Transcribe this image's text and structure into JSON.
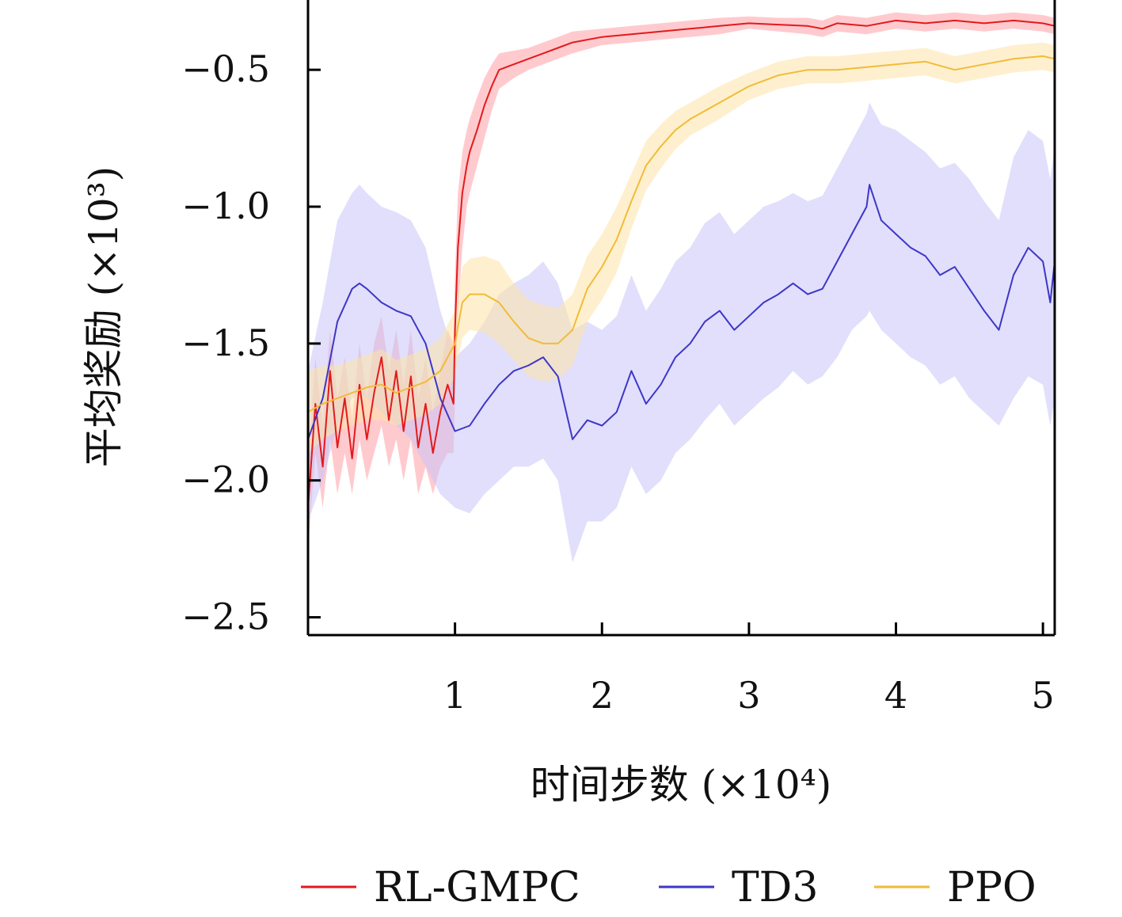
{
  "chart_data": {
    "type": "line",
    "xlabel": "时间步数 (×10⁴)",
    "ylabel": "平均奖励 (×10³)",
    "xlim": [
      0.0,
      5.08
    ],
    "ylim": [
      -2.565,
      -0.245
    ],
    "xticks": [
      1,
      2,
      3,
      4,
      5
    ],
    "yticks": [
      -0.5,
      -1.0,
      -1.5,
      -2.0,
      -2.5
    ],
    "xtick_labels": [
      "1",
      "2",
      "3",
      "4",
      "5"
    ],
    "ytick_labels": [
      "−0.5",
      "−1.0",
      "−1.5",
      "−2.0",
      "−2.5"
    ],
    "grid": false,
    "legend_position": "bottom",
    "series": [
      {
        "name": "RL-GMPC",
        "color": "#e31a1c",
        "band_color": "#ff9fa6",
        "x": [
          0.0,
          0.05,
          0.1,
          0.15,
          0.2,
          0.25,
          0.3,
          0.35,
          0.4,
          0.45,
          0.5,
          0.55,
          0.6,
          0.65,
          0.7,
          0.75,
          0.8,
          0.85,
          0.9,
          0.95,
          0.99,
          1.0,
          1.02,
          1.05,
          1.08,
          1.1,
          1.15,
          1.2,
          1.25,
          1.3,
          1.4,
          1.5,
          1.6,
          1.7,
          1.8,
          2.0,
          2.2,
          2.4,
          2.6,
          2.8,
          3.0,
          3.2,
          3.4,
          3.5,
          3.6,
          3.8,
          4.0,
          4.2,
          4.4,
          4.6,
          4.8,
          5.0,
          5.08
        ],
        "y": [
          -2.1,
          -1.72,
          -1.95,
          -1.6,
          -1.88,
          -1.7,
          -1.92,
          -1.65,
          -1.85,
          -1.68,
          -1.55,
          -1.78,
          -1.6,
          -1.82,
          -1.62,
          -1.88,
          -1.72,
          -1.9,
          -1.75,
          -1.65,
          -1.72,
          -1.45,
          -1.15,
          -0.95,
          -0.85,
          -0.8,
          -0.72,
          -0.63,
          -0.56,
          -0.5,
          -0.48,
          -0.46,
          -0.44,
          -0.42,
          -0.4,
          -0.38,
          -0.37,
          -0.36,
          -0.35,
          -0.34,
          -0.33,
          -0.335,
          -0.34,
          -0.35,
          -0.33,
          -0.34,
          -0.32,
          -0.33,
          -0.32,
          -0.33,
          -0.32,
          -0.33,
          -0.34
        ],
        "lower": [
          -2.25,
          -1.9,
          -2.1,
          -1.85,
          -2.05,
          -1.9,
          -2.05,
          -1.85,
          -2.0,
          -1.9,
          -1.8,
          -1.95,
          -1.85,
          -2.0,
          -1.85,
          -2.05,
          -1.95,
          -2.05,
          -1.95,
          -1.9,
          -1.9,
          -1.7,
          -1.4,
          -1.15,
          -1.0,
          -0.95,
          -0.85,
          -0.75,
          -0.65,
          -0.57,
          -0.53,
          -0.5,
          -0.48,
          -0.46,
          -0.44,
          -0.41,
          -0.4,
          -0.39,
          -0.38,
          -0.37,
          -0.35,
          -0.36,
          -0.37,
          -0.38,
          -0.36,
          -0.37,
          -0.35,
          -0.36,
          -0.35,
          -0.36,
          -0.35,
          -0.36,
          -0.37
        ],
        "upper": [
          -1.95,
          -1.55,
          -1.8,
          -1.45,
          -1.7,
          -1.55,
          -1.78,
          -1.5,
          -1.7,
          -1.5,
          -1.4,
          -1.6,
          -1.45,
          -1.65,
          -1.45,
          -1.7,
          -1.55,
          -1.75,
          -1.6,
          -1.45,
          -1.5,
          -1.25,
          -0.95,
          -0.8,
          -0.72,
          -0.68,
          -0.6,
          -0.53,
          -0.48,
          -0.44,
          -0.43,
          -0.42,
          -0.4,
          -0.38,
          -0.36,
          -0.35,
          -0.34,
          -0.33,
          -0.32,
          -0.31,
          -0.305,
          -0.31,
          -0.31,
          -0.32,
          -0.3,
          -0.31,
          -0.29,
          -0.3,
          -0.29,
          -0.3,
          -0.29,
          -0.3,
          -0.31
        ]
      },
      {
        "name": "TD3",
        "color": "#3e36c7",
        "band_color": "#c9c4f7",
        "x": [
          0.0,
          0.1,
          0.2,
          0.3,
          0.35,
          0.4,
          0.5,
          0.6,
          0.7,
          0.8,
          0.9,
          1.0,
          1.1,
          1.2,
          1.3,
          1.4,
          1.5,
          1.6,
          1.7,
          1.8,
          1.9,
          2.0,
          2.1,
          2.2,
          2.3,
          2.4,
          2.5,
          2.6,
          2.7,
          2.8,
          2.9,
          3.0,
          3.1,
          3.2,
          3.3,
          3.4,
          3.5,
          3.6,
          3.7,
          3.8,
          3.82,
          3.9,
          4.0,
          4.1,
          4.2,
          4.3,
          4.4,
          4.5,
          4.6,
          4.7,
          4.8,
          4.9,
          5.0,
          5.05,
          5.08
        ],
        "y": [
          -1.85,
          -1.7,
          -1.42,
          -1.3,
          -1.28,
          -1.3,
          -1.35,
          -1.38,
          -1.4,
          -1.5,
          -1.7,
          -1.82,
          -1.8,
          -1.72,
          -1.65,
          -1.6,
          -1.58,
          -1.55,
          -1.62,
          -1.85,
          -1.78,
          -1.8,
          -1.75,
          -1.6,
          -1.72,
          -1.65,
          -1.55,
          -1.5,
          -1.42,
          -1.38,
          -1.45,
          -1.4,
          -1.35,
          -1.32,
          -1.28,
          -1.32,
          -1.3,
          -1.2,
          -1.1,
          -1.0,
          -0.92,
          -1.05,
          -1.1,
          -1.15,
          -1.18,
          -1.25,
          -1.22,
          -1.3,
          -1.38,
          -1.45,
          -1.25,
          -1.15,
          -1.2,
          -1.35,
          -1.2
        ],
        "lower": [
          -2.15,
          -2.0,
          -1.8,
          -1.7,
          -1.68,
          -1.7,
          -1.75,
          -1.8,
          -1.85,
          -1.95,
          -2.05,
          -2.1,
          -2.12,
          -2.05,
          -2.0,
          -1.95,
          -1.95,
          -1.92,
          -2.0,
          -2.3,
          -2.15,
          -2.15,
          -2.1,
          -1.95,
          -2.05,
          -2.0,
          -1.9,
          -1.85,
          -1.78,
          -1.72,
          -1.8,
          -1.75,
          -1.7,
          -1.66,
          -1.6,
          -1.65,
          -1.62,
          -1.55,
          -1.45,
          -1.4,
          -1.38,
          -1.45,
          -1.5,
          -1.55,
          -1.58,
          -1.65,
          -1.62,
          -1.7,
          -1.75,
          -1.8,
          -1.7,
          -1.62,
          -1.65,
          -1.8,
          -1.7
        ],
        "upper": [
          -1.6,
          -1.35,
          -1.05,
          -0.95,
          -0.92,
          -0.95,
          -1.0,
          -1.02,
          -1.05,
          -1.15,
          -1.38,
          -1.55,
          -1.5,
          -1.42,
          -1.32,
          -1.28,
          -1.25,
          -1.2,
          -1.28,
          -1.45,
          -1.42,
          -1.45,
          -1.4,
          -1.25,
          -1.38,
          -1.3,
          -1.2,
          -1.15,
          -1.06,
          -1.02,
          -1.1,
          -1.05,
          -1.0,
          -0.98,
          -0.95,
          -0.98,
          -0.96,
          -0.86,
          -0.76,
          -0.66,
          -0.62,
          -0.7,
          -0.72,
          -0.76,
          -0.8,
          -0.86,
          -0.84,
          -0.9,
          -0.98,
          -1.05,
          -0.82,
          -0.72,
          -0.76,
          -0.9,
          -0.78
        ]
      },
      {
        "name": "PPO",
        "color": "#f2bb38",
        "band_color": "#fde4a8",
        "x": [
          0.0,
          0.1,
          0.2,
          0.3,
          0.4,
          0.5,
          0.6,
          0.7,
          0.8,
          0.9,
          1.0,
          1.05,
          1.1,
          1.2,
          1.3,
          1.4,
          1.5,
          1.6,
          1.7,
          1.8,
          1.9,
          2.0,
          2.1,
          2.2,
          2.3,
          2.4,
          2.5,
          2.6,
          2.8,
          3.0,
          3.2,
          3.4,
          3.6,
          3.8,
          4.0,
          4.2,
          4.4,
          4.6,
          4.8,
          5.0,
          5.08
        ],
        "y": [
          -1.75,
          -1.72,
          -1.7,
          -1.68,
          -1.66,
          -1.65,
          -1.68,
          -1.66,
          -1.64,
          -1.6,
          -1.5,
          -1.35,
          -1.32,
          -1.32,
          -1.35,
          -1.42,
          -1.48,
          -1.5,
          -1.5,
          -1.45,
          -1.3,
          -1.22,
          -1.12,
          -0.98,
          -0.85,
          -0.78,
          -0.72,
          -0.68,
          -0.62,
          -0.56,
          -0.52,
          -0.5,
          -0.5,
          -0.49,
          -0.48,
          -0.47,
          -0.5,
          -0.48,
          -0.46,
          -0.45,
          -0.46
        ],
        "lower": [
          -1.9,
          -1.85,
          -1.82,
          -1.8,
          -1.78,
          -1.78,
          -1.8,
          -1.78,
          -1.76,
          -1.72,
          -1.62,
          -1.48,
          -1.45,
          -1.46,
          -1.5,
          -1.56,
          -1.62,
          -1.64,
          -1.63,
          -1.58,
          -1.42,
          -1.34,
          -1.24,
          -1.08,
          -0.94,
          -0.86,
          -0.79,
          -0.74,
          -0.68,
          -0.61,
          -0.57,
          -0.55,
          -0.55,
          -0.54,
          -0.53,
          -0.52,
          -0.55,
          -0.53,
          -0.51,
          -0.5,
          -0.51
        ],
        "upper": [
          -1.6,
          -1.58,
          -1.58,
          -1.56,
          -1.54,
          -1.52,
          -1.56,
          -1.54,
          -1.52,
          -1.48,
          -1.38,
          -1.22,
          -1.19,
          -1.18,
          -1.2,
          -1.28,
          -1.34,
          -1.36,
          -1.37,
          -1.32,
          -1.18,
          -1.1,
          -1.0,
          -0.88,
          -0.76,
          -0.7,
          -0.65,
          -0.62,
          -0.56,
          -0.51,
          -0.47,
          -0.45,
          -0.45,
          -0.44,
          -0.43,
          -0.42,
          -0.45,
          -0.43,
          -0.41,
          -0.4,
          -0.41
        ]
      }
    ]
  }
}
